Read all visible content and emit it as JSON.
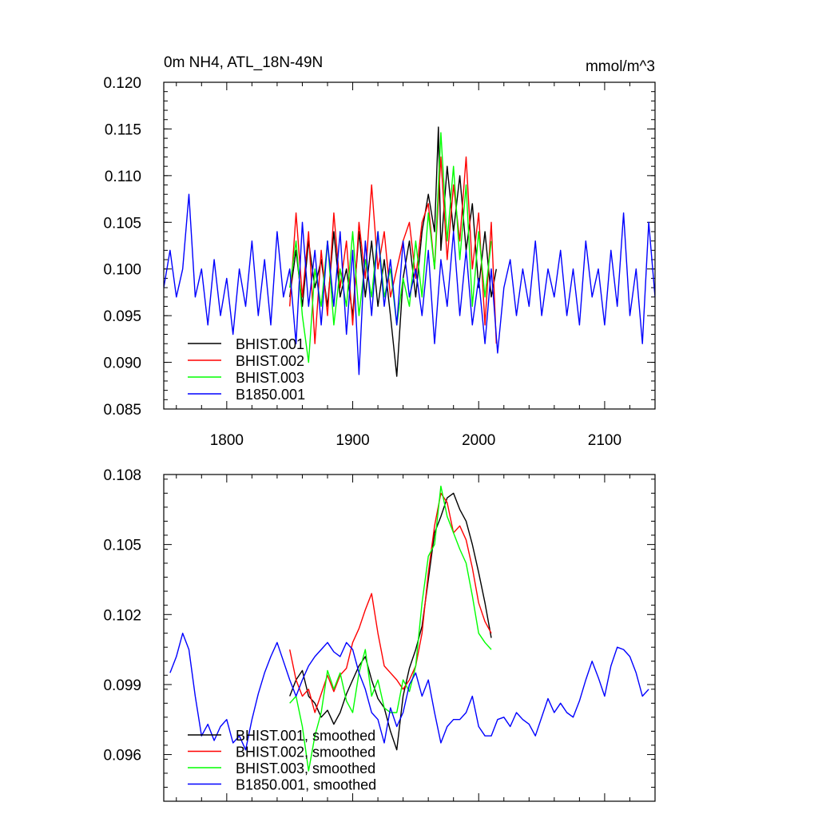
{
  "chart_data": [
    {
      "type": "line",
      "title_left": "0m NH4, ATL_18N-49N",
      "title_right": "mmol/m^3",
      "xlabel": "",
      "ylabel": "",
      "xlim": [
        1750,
        2140
      ],
      "ylim": [
        0.085,
        0.12
      ],
      "x_ticks": [
        1800,
        1900,
        2000,
        2100
      ],
      "x_tick_labels": [
        "1800",
        "1900",
        "2000",
        "2100"
      ],
      "y_ticks": [
        0.085,
        0.09,
        0.095,
        0.1,
        0.105,
        0.11,
        0.115,
        0.12
      ],
      "y_tick_labels": [
        "0.085",
        "0.090",
        "0.095",
        "0.100",
        "0.105",
        "0.110",
        "0.115",
        "0.120"
      ],
      "legend_position": "bottom-left",
      "series": [
        {
          "name": "BHIST.001",
          "color": "#000000",
          "x": [
            1850,
            1855,
            1860,
            1865,
            1870,
            1875,
            1880,
            1885,
            1890,
            1895,
            1900,
            1905,
            1910,
            1915,
            1920,
            1925,
            1930,
            1935,
            1940,
            1945,
            1950,
            1955,
            1960,
            1965,
            1968,
            1970,
            1975,
            1980,
            1985,
            1990,
            1995,
            2000,
            2005,
            2010,
            2014
          ],
          "y": [
            0.097,
            0.102,
            0.096,
            0.103,
            0.098,
            0.101,
            0.096,
            0.104,
            0.097,
            0.1,
            0.095,
            0.104,
            0.097,
            0.103,
            0.096,
            0.101,
            0.095,
            0.0885,
            0.099,
            0.103,
            0.097,
            0.104,
            0.108,
            0.104,
            0.1152,
            0.102,
            0.111,
            0.104,
            0.11,
            0.102,
            0.107,
            0.098,
            0.104,
            0.097,
            0.1
          ]
        },
        {
          "name": "BHIST.002",
          "color": "#ff0000",
          "x": [
            1850,
            1855,
            1860,
            1865,
            1870,
            1875,
            1880,
            1885,
            1890,
            1895,
            1900,
            1905,
            1910,
            1915,
            1920,
            1925,
            1930,
            1935,
            1940,
            1945,
            1950,
            1955,
            1960,
            1965,
            1970,
            1975,
            1980,
            1985,
            1990,
            1995,
            2000,
            2005,
            2010,
            2014
          ],
          "y": [
            0.096,
            0.106,
            0.097,
            0.104,
            0.092,
            0.102,
            0.095,
            0.106,
            0.098,
            0.103,
            0.094,
            0.105,
            0.099,
            0.109,
            0.1,
            0.104,
            0.097,
            0.1,
            0.103,
            0.105,
            0.099,
            0.105,
            0.107,
            0.1,
            0.112,
            0.101,
            0.109,
            0.103,
            0.112,
            0.1,
            0.106,
            0.094,
            0.105,
            0.092
          ]
        },
        {
          "name": "BHIST.003",
          "color": "#00ff00",
          "x": [
            1850,
            1855,
            1860,
            1865,
            1870,
            1875,
            1880,
            1885,
            1890,
            1895,
            1900,
            1905,
            1910,
            1915,
            1920,
            1925,
            1930,
            1935,
            1940,
            1945,
            1950,
            1955,
            1960,
            1965,
            1970,
            1975,
            1980,
            1985,
            1990,
            1995,
            2000,
            2005,
            2010
          ],
          "y": [
            0.098,
            0.103,
            0.095,
            0.09,
            0.1,
            0.096,
            0.103,
            0.094,
            0.1,
            0.096,
            0.104,
            0.095,
            0.101,
            0.097,
            0.104,
            0.097,
            0.1,
            0.094,
            0.099,
            0.096,
            0.103,
            0.097,
            0.106,
            0.1,
            0.1146,
            0.103,
            0.111,
            0.101,
            0.109,
            0.096,
            0.104,
            0.097,
            0.103
          ]
        },
        {
          "name": "B1850.001",
          "color": "#0000ff",
          "x": [
            1750,
            1755,
            1760,
            1765,
            1770,
            1775,
            1780,
            1785,
            1790,
            1795,
            1800,
            1805,
            1810,
            1815,
            1820,
            1825,
            1830,
            1835,
            1840,
            1845,
            1850,
            1855,
            1860,
            1865,
            1870,
            1875,
            1880,
            1885,
            1890,
            1895,
            1900,
            1905,
            1910,
            1915,
            1920,
            1925,
            1930,
            1935,
            1940,
            1945,
            1950,
            1955,
            1960,
            1965,
            1970,
            1975,
            1980,
            1985,
            1990,
            1995,
            2000,
            2005,
            2010,
            2015,
            2020,
            2025,
            2030,
            2035,
            2040,
            2045,
            2050,
            2055,
            2060,
            2065,
            2070,
            2075,
            2080,
            2085,
            2090,
            2095,
            2100,
            2105,
            2110,
            2115,
            2120,
            2125,
            2130,
            2135,
            2140
          ],
          "y": [
            0.098,
            0.102,
            0.097,
            0.1,
            0.108,
            0.097,
            0.1,
            0.094,
            0.101,
            0.095,
            0.099,
            0.093,
            0.1,
            0.096,
            0.103,
            0.095,
            0.101,
            0.094,
            0.104,
            0.097,
            0.1,
            0.092,
            0.105,
            0.096,
            0.102,
            0.094,
            0.103,
            0.096,
            0.104,
            0.093,
            0.102,
            0.0887,
            0.103,
            0.095,
            0.104,
            0.096,
            0.101,
            0.094,
            0.103,
            0.097,
            0.1,
            0.095,
            0.102,
            0.092,
            0.101,
            0.096,
            0.104,
            0.095,
            0.102,
            0.094,
            0.099,
            0.092,
            0.1,
            0.091,
            0.098,
            0.101,
            0.095,
            0.1,
            0.096,
            0.103,
            0.095,
            0.1,
            0.097,
            0.102,
            0.095,
            0.1,
            0.094,
            0.103,
            0.097,
            0.1,
            0.094,
            0.102,
            0.096,
            0.106,
            0.095,
            0.1,
            0.092,
            0.105,
            0.097
          ]
        }
      ]
    },
    {
      "type": "line",
      "title_left": "",
      "title_right": "",
      "xlabel": "",
      "ylabel": "",
      "xlim": [
        1750,
        2140
      ],
      "ylim": [
        0.094,
        0.108
      ],
      "x_ticks": [
        1800,
        1900,
        2000,
        2100
      ],
      "x_tick_labels": [],
      "y_ticks": [
        0.096,
        0.099,
        0.102,
        0.105,
        0.108
      ],
      "y_tick_labels": [
        "0.096",
        "0.099",
        "0.102",
        "0.105",
        "0.108"
      ],
      "legend_position": "bottom-left",
      "series": [
        {
          "name": "BHIST.001, smoothed",
          "color": "#000000",
          "x": [
            1850,
            1855,
            1860,
            1865,
            1870,
            1875,
            1880,
            1885,
            1890,
            1895,
            1900,
            1905,
            1910,
            1915,
            1920,
            1925,
            1930,
            1935,
            1940,
            1945,
            1950,
            1955,
            1960,
            1965,
            1970,
            1975,
            1980,
            1985,
            1990,
            1995,
            2000,
            2005,
            2010
          ],
          "y": [
            0.0985,
            0.0992,
            0.0996,
            0.0985,
            0.0982,
            0.0976,
            0.0979,
            0.0973,
            0.0978,
            0.0986,
            0.0992,
            0.0998,
            0.1002,
            0.0992,
            0.0984,
            0.098,
            0.097,
            0.0962,
            0.0985,
            0.0997,
            0.1005,
            0.1015,
            0.1035,
            0.1055,
            0.1062,
            0.107,
            0.1072,
            0.1065,
            0.106,
            0.105,
            0.1038,
            0.1025,
            0.101
          ]
        },
        {
          "name": "BHIST.002, smoothed",
          "color": "#ff0000",
          "x": [
            1850,
            1855,
            1860,
            1865,
            1870,
            1875,
            1880,
            1885,
            1890,
            1895,
            1900,
            1905,
            1910,
            1915,
            1920,
            1925,
            1930,
            1935,
            1940,
            1945,
            1950,
            1955,
            1960,
            1965,
            1970,
            1975,
            1980,
            1985,
            1990,
            1995,
            2000,
            2005,
            2010
          ],
          "y": [
            0.1005,
            0.0992,
            0.0985,
            0.0988,
            0.0978,
            0.0986,
            0.0994,
            0.0987,
            0.0994,
            0.0997,
            0.1008,
            0.1014,
            0.1022,
            0.1029,
            0.1012,
            0.0998,
            0.0995,
            0.0992,
            0.0988,
            0.0992,
            0.0998,
            0.1012,
            0.1038,
            0.1058,
            0.1072,
            0.1068,
            0.1055,
            0.1058,
            0.1052,
            0.104,
            0.1025,
            0.1017,
            0.1012
          ]
        },
        {
          "name": "BHIST.003, smoothed",
          "color": "#00ff00",
          "x": [
            1850,
            1855,
            1860,
            1865,
            1870,
            1875,
            1880,
            1885,
            1890,
            1895,
            1900,
            1905,
            1910,
            1915,
            1920,
            1925,
            1930,
            1935,
            1940,
            1945,
            1950,
            1955,
            1960,
            1965,
            1970,
            1975,
            1980,
            1985,
            1990,
            1995,
            2000,
            2005,
            2010
          ],
          "y": [
            0.0982,
            0.0985,
            0.0972,
            0.0953,
            0.0968,
            0.0978,
            0.0996,
            0.0988,
            0.0995,
            0.0983,
            0.0978,
            0.0995,
            0.1005,
            0.0985,
            0.0992,
            0.098,
            0.0978,
            0.0978,
            0.0992,
            0.0987,
            0.0998,
            0.1025,
            0.1045,
            0.105,
            0.1075,
            0.1062,
            0.1055,
            0.1048,
            0.1042,
            0.1028,
            0.1012,
            0.1008,
            0.1005
          ]
        },
        {
          "name": "B1850.001, smoothed",
          "color": "#0000ff",
          "x": [
            1755,
            1760,
            1765,
            1770,
            1775,
            1780,
            1785,
            1790,
            1795,
            1800,
            1805,
            1810,
            1815,
            1820,
            1825,
            1830,
            1835,
            1840,
            1845,
            1850,
            1855,
            1860,
            1865,
            1870,
            1875,
            1880,
            1885,
            1890,
            1895,
            1900,
            1905,
            1910,
            1915,
            1920,
            1925,
            1930,
            1935,
            1940,
            1945,
            1950,
            1955,
            1960,
            1965,
            1970,
            1975,
            1980,
            1985,
            1990,
            1995,
            2000,
            2005,
            2010,
            2015,
            2020,
            2025,
            2030,
            2035,
            2040,
            2045,
            2050,
            2055,
            2060,
            2065,
            2070,
            2075,
            2080,
            2085,
            2090,
            2095,
            2100,
            2105,
            2110,
            2115,
            2120,
            2125,
            2130,
            2135
          ],
          "y": [
            0.0995,
            0.1002,
            0.1012,
            0.1005,
            0.0985,
            0.0968,
            0.0973,
            0.0966,
            0.0972,
            0.0975,
            0.0965,
            0.0968,
            0.0962,
            0.0975,
            0.0986,
            0.0995,
            0.1002,
            0.1008,
            0.1,
            0.0992,
            0.0985,
            0.0992,
            0.0998,
            0.1002,
            0.1005,
            0.1008,
            0.1004,
            0.1002,
            0.1008,
            0.1005,
            0.0995,
            0.0988,
            0.0978,
            0.0975,
            0.0965,
            0.098,
            0.0972,
            0.0978,
            0.099,
            0.0995,
            0.0985,
            0.0992,
            0.0978,
            0.0965,
            0.0972,
            0.0975,
            0.0975,
            0.0978,
            0.0985,
            0.0972,
            0.0968,
            0.0968,
            0.0975,
            0.0976,
            0.0972,
            0.0978,
            0.0975,
            0.0973,
            0.0968,
            0.0976,
            0.0984,
            0.0978,
            0.0982,
            0.0978,
            0.0976,
            0.0983,
            0.0992,
            0.1,
            0.0993,
            0.0985,
            0.0998,
            0.1006,
            0.1005,
            0.1002,
            0.0995,
            0.0985,
            0.0988
          ]
        }
      ]
    }
  ]
}
